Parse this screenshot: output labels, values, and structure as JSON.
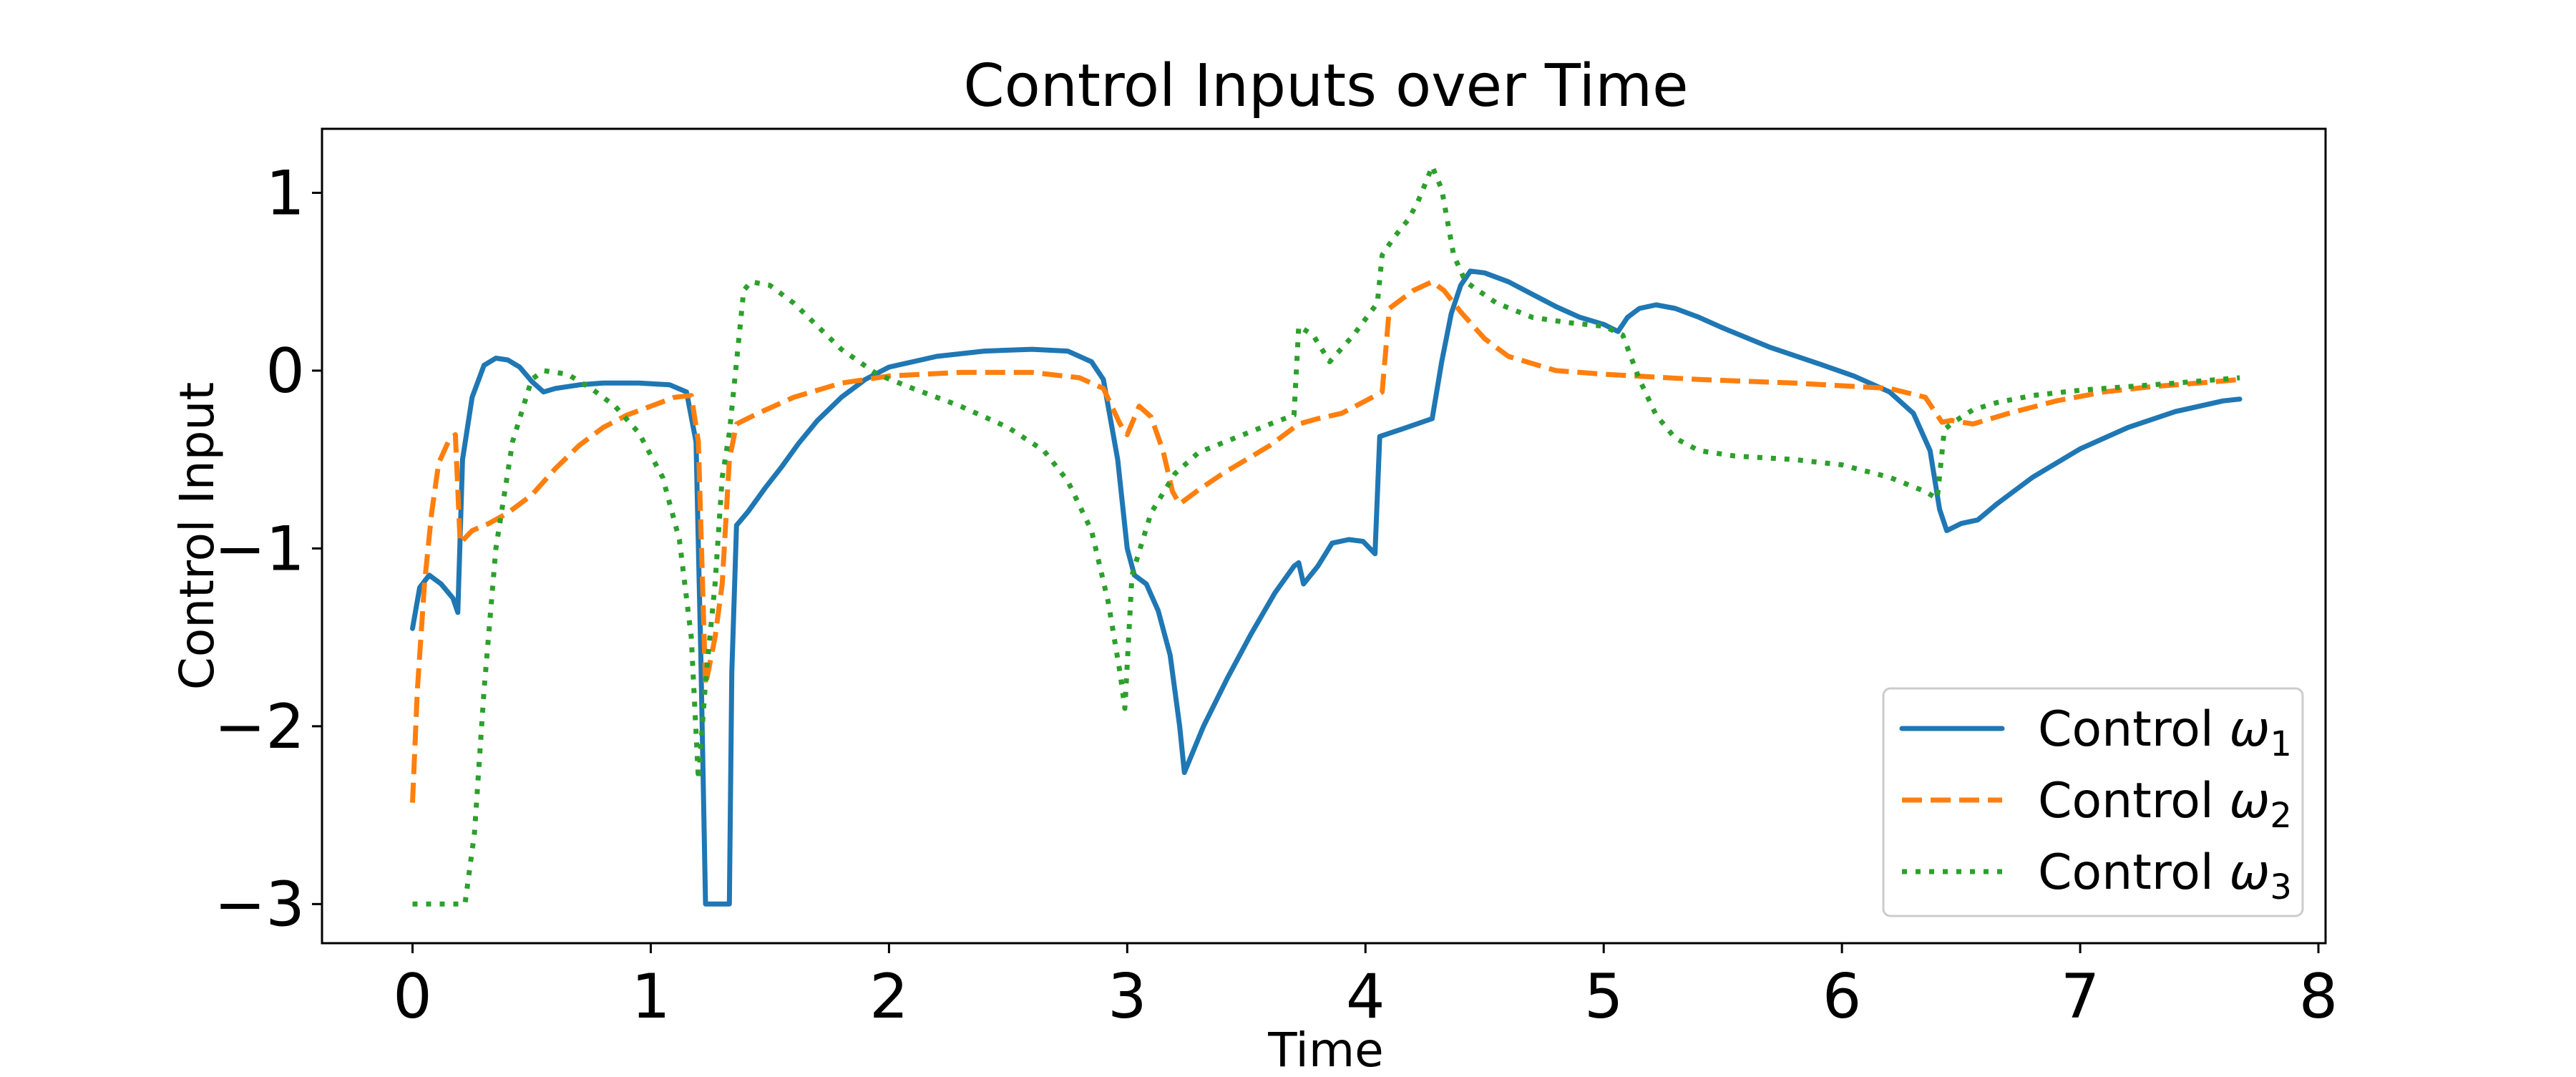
{
  "chart_data": {
    "type": "line",
    "title": "Control Inputs over Time",
    "xlabel": "Time",
    "ylabel": "Control Input",
    "xlim": [
      -0.38,
      8.03
    ],
    "ylim": [
      -3.22,
      1.36
    ],
    "x_ticks": [
      0,
      1,
      2,
      3,
      4,
      5,
      6,
      7,
      8
    ],
    "y_ticks": [
      -3,
      -2,
      -1,
      0,
      1
    ],
    "x_tick_labels": [
      "0",
      "1",
      "2",
      "3",
      "4",
      "5",
      "6",
      "7",
      "8"
    ],
    "y_tick_labels": [
      "−3",
      "−2",
      "−1",
      "0",
      "1"
    ],
    "grid": false,
    "legend_position": "lower-right",
    "series": [
      {
        "name_prefix": "Control ",
        "name_symbol": "ω",
        "name_sub": "1",
        "color": "#1f77b4",
        "style": "solid",
        "points": [
          [
            0.0,
            -1.45
          ],
          [
            0.03,
            -1.22
          ],
          [
            0.07,
            -1.15
          ],
          [
            0.12,
            -1.2
          ],
          [
            0.17,
            -1.28
          ],
          [
            0.19,
            -1.36
          ],
          [
            0.21,
            -0.5
          ],
          [
            0.25,
            -0.15
          ],
          [
            0.3,
            0.03
          ],
          [
            0.35,
            0.07
          ],
          [
            0.4,
            0.06
          ],
          [
            0.45,
            0.02
          ],
          [
            0.5,
            -0.06
          ],
          [
            0.55,
            -0.12
          ],
          [
            0.6,
            -0.1
          ],
          [
            0.7,
            -0.08
          ],
          [
            0.8,
            -0.07
          ],
          [
            0.95,
            -0.07
          ],
          [
            1.08,
            -0.08
          ],
          [
            1.15,
            -0.12
          ],
          [
            1.19,
            -0.4
          ],
          [
            1.21,
            -1.6
          ],
          [
            1.23,
            -3.0
          ],
          [
            1.33,
            -3.0
          ],
          [
            1.34,
            -1.7
          ],
          [
            1.36,
            -0.87
          ],
          [
            1.41,
            -0.79
          ],
          [
            1.48,
            -0.66
          ],
          [
            1.55,
            -0.54
          ],
          [
            1.62,
            -0.41
          ],
          [
            1.7,
            -0.28
          ],
          [
            1.8,
            -0.15
          ],
          [
            1.9,
            -0.05
          ],
          [
            2.0,
            0.02
          ],
          [
            2.2,
            0.08
          ],
          [
            2.4,
            0.11
          ],
          [
            2.6,
            0.12
          ],
          [
            2.75,
            0.11
          ],
          [
            2.85,
            0.05
          ],
          [
            2.9,
            -0.05
          ],
          [
            2.96,
            -0.5
          ],
          [
            3.0,
            -1.0
          ],
          [
            3.03,
            -1.15
          ],
          [
            3.08,
            -1.2
          ],
          [
            3.13,
            -1.35
          ],
          [
            3.18,
            -1.6
          ],
          [
            3.22,
            -2.0
          ],
          [
            3.24,
            -2.26
          ],
          [
            3.32,
            -2.0
          ],
          [
            3.42,
            -1.73
          ],
          [
            3.52,
            -1.48
          ],
          [
            3.62,
            -1.25
          ],
          [
            3.7,
            -1.1
          ],
          [
            3.72,
            -1.08
          ],
          [
            3.74,
            -1.2
          ],
          [
            3.8,
            -1.1
          ],
          [
            3.86,
            -0.97
          ],
          [
            3.93,
            -0.95
          ],
          [
            3.99,
            -0.96
          ],
          [
            4.04,
            -1.03
          ],
          [
            4.06,
            -0.37
          ],
          [
            4.15,
            -0.33
          ],
          [
            4.28,
            -0.27
          ],
          [
            4.32,
            0.05
          ],
          [
            4.36,
            0.32
          ],
          [
            4.4,
            0.48
          ],
          [
            4.44,
            0.56
          ],
          [
            4.5,
            0.55
          ],
          [
            4.6,
            0.5
          ],
          [
            4.7,
            0.43
          ],
          [
            4.8,
            0.36
          ],
          [
            4.9,
            0.3
          ],
          [
            5.0,
            0.26
          ],
          [
            5.06,
            0.22
          ],
          [
            5.1,
            0.3
          ],
          [
            5.15,
            0.35
          ],
          [
            5.22,
            0.37
          ],
          [
            5.3,
            0.35
          ],
          [
            5.4,
            0.3
          ],
          [
            5.5,
            0.24
          ],
          [
            5.7,
            0.13
          ],
          [
            5.9,
            0.04
          ],
          [
            6.05,
            -0.03
          ],
          [
            6.2,
            -0.12
          ],
          [
            6.3,
            -0.24
          ],
          [
            6.37,
            -0.45
          ],
          [
            6.41,
            -0.78
          ],
          [
            6.44,
            -0.9
          ],
          [
            6.5,
            -0.86
          ],
          [
            6.57,
            -0.84
          ],
          [
            6.65,
            -0.75
          ],
          [
            6.8,
            -0.6
          ],
          [
            7.0,
            -0.44
          ],
          [
            7.2,
            -0.32
          ],
          [
            7.4,
            -0.23
          ],
          [
            7.6,
            -0.17
          ],
          [
            7.67,
            -0.16
          ]
        ]
      },
      {
        "name_prefix": "Control ",
        "name_symbol": "ω",
        "name_sub": "2",
        "color": "#ff7f0e",
        "style": "dashed",
        "points": [
          [
            0.0,
            -2.43
          ],
          [
            0.02,
            -1.8
          ],
          [
            0.05,
            -1.2
          ],
          [
            0.08,
            -0.8
          ],
          [
            0.11,
            -0.52
          ],
          [
            0.15,
            -0.4
          ],
          [
            0.18,
            -0.36
          ],
          [
            0.2,
            -0.97
          ],
          [
            0.25,
            -0.9
          ],
          [
            0.32,
            -0.86
          ],
          [
            0.4,
            -0.8
          ],
          [
            0.5,
            -0.7
          ],
          [
            0.6,
            -0.55
          ],
          [
            0.7,
            -0.42
          ],
          [
            0.8,
            -0.32
          ],
          [
            0.9,
            -0.25
          ],
          [
            1.0,
            -0.2
          ],
          [
            1.1,
            -0.15
          ],
          [
            1.17,
            -0.14
          ],
          [
            1.2,
            -0.4
          ],
          [
            1.23,
            -1.77
          ],
          [
            1.27,
            -1.5
          ],
          [
            1.3,
            -1.2
          ],
          [
            1.33,
            -0.5
          ],
          [
            1.36,
            -0.3
          ],
          [
            1.45,
            -0.24
          ],
          [
            1.6,
            -0.15
          ],
          [
            1.8,
            -0.07
          ],
          [
            2.0,
            -0.03
          ],
          [
            2.3,
            -0.01
          ],
          [
            2.6,
            -0.01
          ],
          [
            2.8,
            -0.04
          ],
          [
            2.9,
            -0.1
          ],
          [
            2.97,
            -0.3
          ],
          [
            3.0,
            -0.36
          ],
          [
            3.05,
            -0.2
          ],
          [
            3.1,
            -0.26
          ],
          [
            3.15,
            -0.45
          ],
          [
            3.19,
            -0.68
          ],
          [
            3.22,
            -0.75
          ],
          [
            3.3,
            -0.67
          ],
          [
            3.4,
            -0.58
          ],
          [
            3.5,
            -0.5
          ],
          [
            3.6,
            -0.42
          ],
          [
            3.72,
            -0.3
          ],
          [
            3.8,
            -0.27
          ],
          [
            3.9,
            -0.24
          ],
          [
            4.0,
            -0.17
          ],
          [
            4.07,
            -0.12
          ],
          [
            4.1,
            0.35
          ],
          [
            4.2,
            0.45
          ],
          [
            4.28,
            0.5
          ],
          [
            4.33,
            0.45
          ],
          [
            4.4,
            0.33
          ],
          [
            4.5,
            0.18
          ],
          [
            4.6,
            0.08
          ],
          [
            4.8,
            0.0
          ],
          [
            5.0,
            -0.02
          ],
          [
            5.4,
            -0.05
          ],
          [
            5.8,
            -0.07
          ],
          [
            6.2,
            -0.1
          ],
          [
            6.35,
            -0.15
          ],
          [
            6.42,
            -0.29
          ],
          [
            6.46,
            -0.28
          ],
          [
            6.55,
            -0.3
          ],
          [
            6.7,
            -0.24
          ],
          [
            6.9,
            -0.17
          ],
          [
            7.1,
            -0.12
          ],
          [
            7.3,
            -0.09
          ],
          [
            7.5,
            -0.07
          ],
          [
            7.67,
            -0.05
          ]
        ]
      },
      {
        "name_prefix": "Control ",
        "name_symbol": "ω",
        "name_sub": "3",
        "color": "#2ca02c",
        "style": "dotted",
        "points": [
          [
            0.0,
            -3.0
          ],
          [
            0.22,
            -3.0
          ],
          [
            0.26,
            -2.6
          ],
          [
            0.3,
            -1.8
          ],
          [
            0.35,
            -1.0
          ],
          [
            0.42,
            -0.4
          ],
          [
            0.5,
            -0.05
          ],
          [
            0.55,
            0.0
          ],
          [
            0.65,
            -0.02
          ],
          [
            0.75,
            -0.1
          ],
          [
            0.85,
            -0.2
          ],
          [
            0.95,
            -0.35
          ],
          [
            1.05,
            -0.6
          ],
          [
            1.12,
            -0.95
          ],
          [
            1.17,
            -1.5
          ],
          [
            1.2,
            -2.3
          ],
          [
            1.23,
            -1.75
          ],
          [
            1.27,
            -1.2
          ],
          [
            1.3,
            -0.6
          ],
          [
            1.33,
            -0.35
          ],
          [
            1.37,
            0.18
          ],
          [
            1.39,
            0.45
          ],
          [
            1.42,
            0.5
          ],
          [
            1.5,
            0.48
          ],
          [
            1.6,
            0.38
          ],
          [
            1.7,
            0.25
          ],
          [
            1.8,
            0.12
          ],
          [
            1.95,
            -0.02
          ],
          [
            2.1,
            -0.1
          ],
          [
            2.3,
            -0.2
          ],
          [
            2.5,
            -0.32
          ],
          [
            2.65,
            -0.45
          ],
          [
            2.75,
            -0.62
          ],
          [
            2.85,
            -0.9
          ],
          [
            2.92,
            -1.3
          ],
          [
            2.97,
            -1.7
          ],
          [
            2.99,
            -1.9
          ],
          [
            3.02,
            -1.15
          ],
          [
            3.1,
            -0.8
          ],
          [
            3.2,
            -0.58
          ],
          [
            3.3,
            -0.46
          ],
          [
            3.45,
            -0.38
          ],
          [
            3.6,
            -0.3
          ],
          [
            3.7,
            -0.25
          ],
          [
            3.72,
            0.25
          ],
          [
            3.78,
            0.2
          ],
          [
            3.85,
            0.05
          ],
          [
            3.95,
            0.2
          ],
          [
            4.05,
            0.38
          ],
          [
            4.07,
            0.65
          ],
          [
            4.12,
            0.75
          ],
          [
            4.18,
            0.85
          ],
          [
            4.22,
            0.95
          ],
          [
            4.26,
            1.08
          ],
          [
            4.28,
            1.15
          ],
          [
            4.32,
            1.02
          ],
          [
            4.37,
            0.65
          ],
          [
            4.42,
            0.5
          ],
          [
            4.55,
            0.38
          ],
          [
            4.7,
            0.3
          ],
          [
            4.85,
            0.27
          ],
          [
            5.0,
            0.25
          ],
          [
            5.08,
            0.2
          ],
          [
            5.15,
            -0.05
          ],
          [
            5.22,
            -0.25
          ],
          [
            5.3,
            -0.38
          ],
          [
            5.4,
            -0.45
          ],
          [
            5.55,
            -0.48
          ],
          [
            5.8,
            -0.5
          ],
          [
            6.0,
            -0.53
          ],
          [
            6.2,
            -0.6
          ],
          [
            6.35,
            -0.68
          ],
          [
            6.4,
            -0.72
          ],
          [
            6.43,
            -0.33
          ],
          [
            6.48,
            -0.28
          ],
          [
            6.55,
            -0.22
          ],
          [
            6.65,
            -0.18
          ],
          [
            6.8,
            -0.14
          ],
          [
            7.0,
            -0.11
          ],
          [
            7.2,
            -0.09
          ],
          [
            7.4,
            -0.07
          ],
          [
            7.67,
            -0.04
          ]
        ]
      }
    ]
  }
}
